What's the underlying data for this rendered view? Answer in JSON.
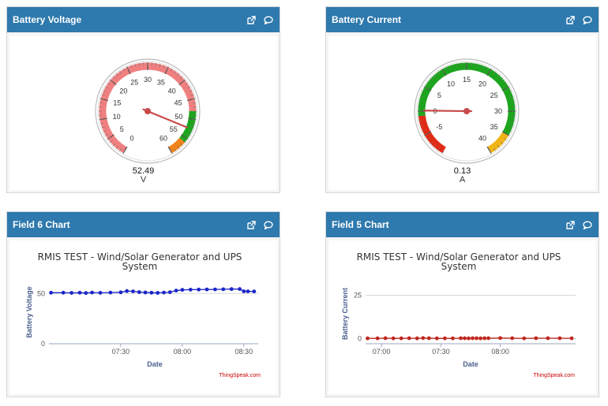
{
  "panels": [
    {
      "title": "Battery Voltage",
      "gauge": {
        "value": 52.49,
        "value_label": "52.49",
        "units": "V",
        "min": 0,
        "max": 60,
        "ticks": [
          "0",
          "5",
          "10",
          "15",
          "20",
          "25",
          "30",
          "35",
          "40",
          "45",
          "50",
          "55",
          "60"
        ],
        "bands": [
          {
            "from": 0,
            "to": 48,
            "color": "#f08080"
          },
          {
            "from": 48,
            "to": 56,
            "color": "#1ea51e"
          },
          {
            "from": 56,
            "to": 60,
            "color": "#f0851b"
          }
        ]
      }
    },
    {
      "title": "Battery Current",
      "gauge": {
        "value": 0.13,
        "value_label": "0.13",
        "units": "A",
        "min": -10,
        "max": 40,
        "ticks": [
          "-5",
          "0",
          "5",
          "10",
          "15",
          "20",
          "25",
          "30",
          "35",
          "40"
        ],
        "tick_values": [
          -5,
          0,
          5,
          10,
          15,
          20,
          25,
          30,
          35,
          40
        ],
        "bands": [
          {
            "from": -10,
            "to": -1,
            "color": "#e02b16"
          },
          {
            "from": -1,
            "to": 35,
            "color": "#1ea51e"
          },
          {
            "from": 35,
            "to": 40,
            "color": "#f0b416"
          }
        ]
      }
    },
    {
      "title": "Field 6 Chart",
      "chart": {
        "title_line1": "RMIS TEST - Wind/Solar Generator and UPS",
        "title_line2": "System",
        "xlabel": "Date",
        "ylabel": "Battery Voltage",
        "credit": "ThingSpeak.com",
        "color": "#1b25c8"
      }
    },
    {
      "title": "Field 5 Chart",
      "chart": {
        "title_line1": "RMIS TEST - Wind/Solar Generator and UPS",
        "title_line2": "System",
        "xlabel": "Date",
        "ylabel": "Battery Current",
        "credit": "ThingSpeak.com",
        "color": "#c0261e"
      }
    }
  ],
  "chart_data": [
    {
      "type": "line",
      "title": "RMIS TEST - Wind/Solar Generator and UPS System",
      "xlabel": "Date",
      "ylabel": "Battery Voltage",
      "x_ticks": [
        "07:30",
        "08:00",
        "08:30"
      ],
      "x_tick_minutes": [
        450,
        480,
        510
      ],
      "xlim_minutes": [
        415,
        517
      ],
      "y_ticks": [
        "0",
        "50"
      ],
      "y_tick_values": [
        0,
        50
      ],
      "ylim": [
        0,
        62
      ],
      "series": [
        {
          "x_minutes": [
            416,
            422,
            426,
            430,
            433,
            436,
            440,
            445,
            450,
            453,
            456,
            459,
            462,
            465,
            468,
            471,
            474,
            477,
            480,
            484,
            488,
            492,
            496,
            500,
            504,
            508,
            510,
            512,
            515
          ],
          "values": [
            50.8,
            50.8,
            50.6,
            50.8,
            50.5,
            50.9,
            50.7,
            50.9,
            51.2,
            52.4,
            52.1,
            51.4,
            51.0,
            50.8,
            50.6,
            50.9,
            51.3,
            52.9,
            53.6,
            53.8,
            53.9,
            54.0,
            54.1,
            54.2,
            54.4,
            54.5,
            52.2,
            52.1,
            52.0
          ]
        }
      ]
    },
    {
      "type": "line",
      "title": "RMIS TEST - Wind/Solar Generator and UPS System",
      "xlabel": "Date",
      "ylabel": "Battery Current",
      "x_ticks": [
        "07:00",
        "07:30",
        "08:00"
      ],
      "x_tick_minutes": [
        420,
        450,
        480
      ],
      "xlim_minutes": [
        412,
        518
      ],
      "y_ticks": [
        "0",
        "25"
      ],
      "y_tick_values": [
        0,
        25
      ],
      "ylim": [
        -3,
        33
      ],
      "series": [
        {
          "x_minutes": [
            413,
            418,
            422,
            426,
            430,
            434,
            438,
            441,
            444,
            448,
            452,
            456,
            460,
            462,
            464,
            466,
            468,
            470,
            472,
            474,
            480,
            486,
            492,
            498,
            504,
            510,
            516
          ],
          "values": [
            0.1,
            0.1,
            0.2,
            0.1,
            0.1,
            0.2,
            0.1,
            0.3,
            0.2,
            0.1,
            0.1,
            0.1,
            0.2,
            0.2,
            0.1,
            0.2,
            0.2,
            0.1,
            0.2,
            0.2,
            0.3,
            0.2,
            0.1,
            0.2,
            0.2,
            0.2,
            0.13
          ]
        }
      ]
    }
  ]
}
